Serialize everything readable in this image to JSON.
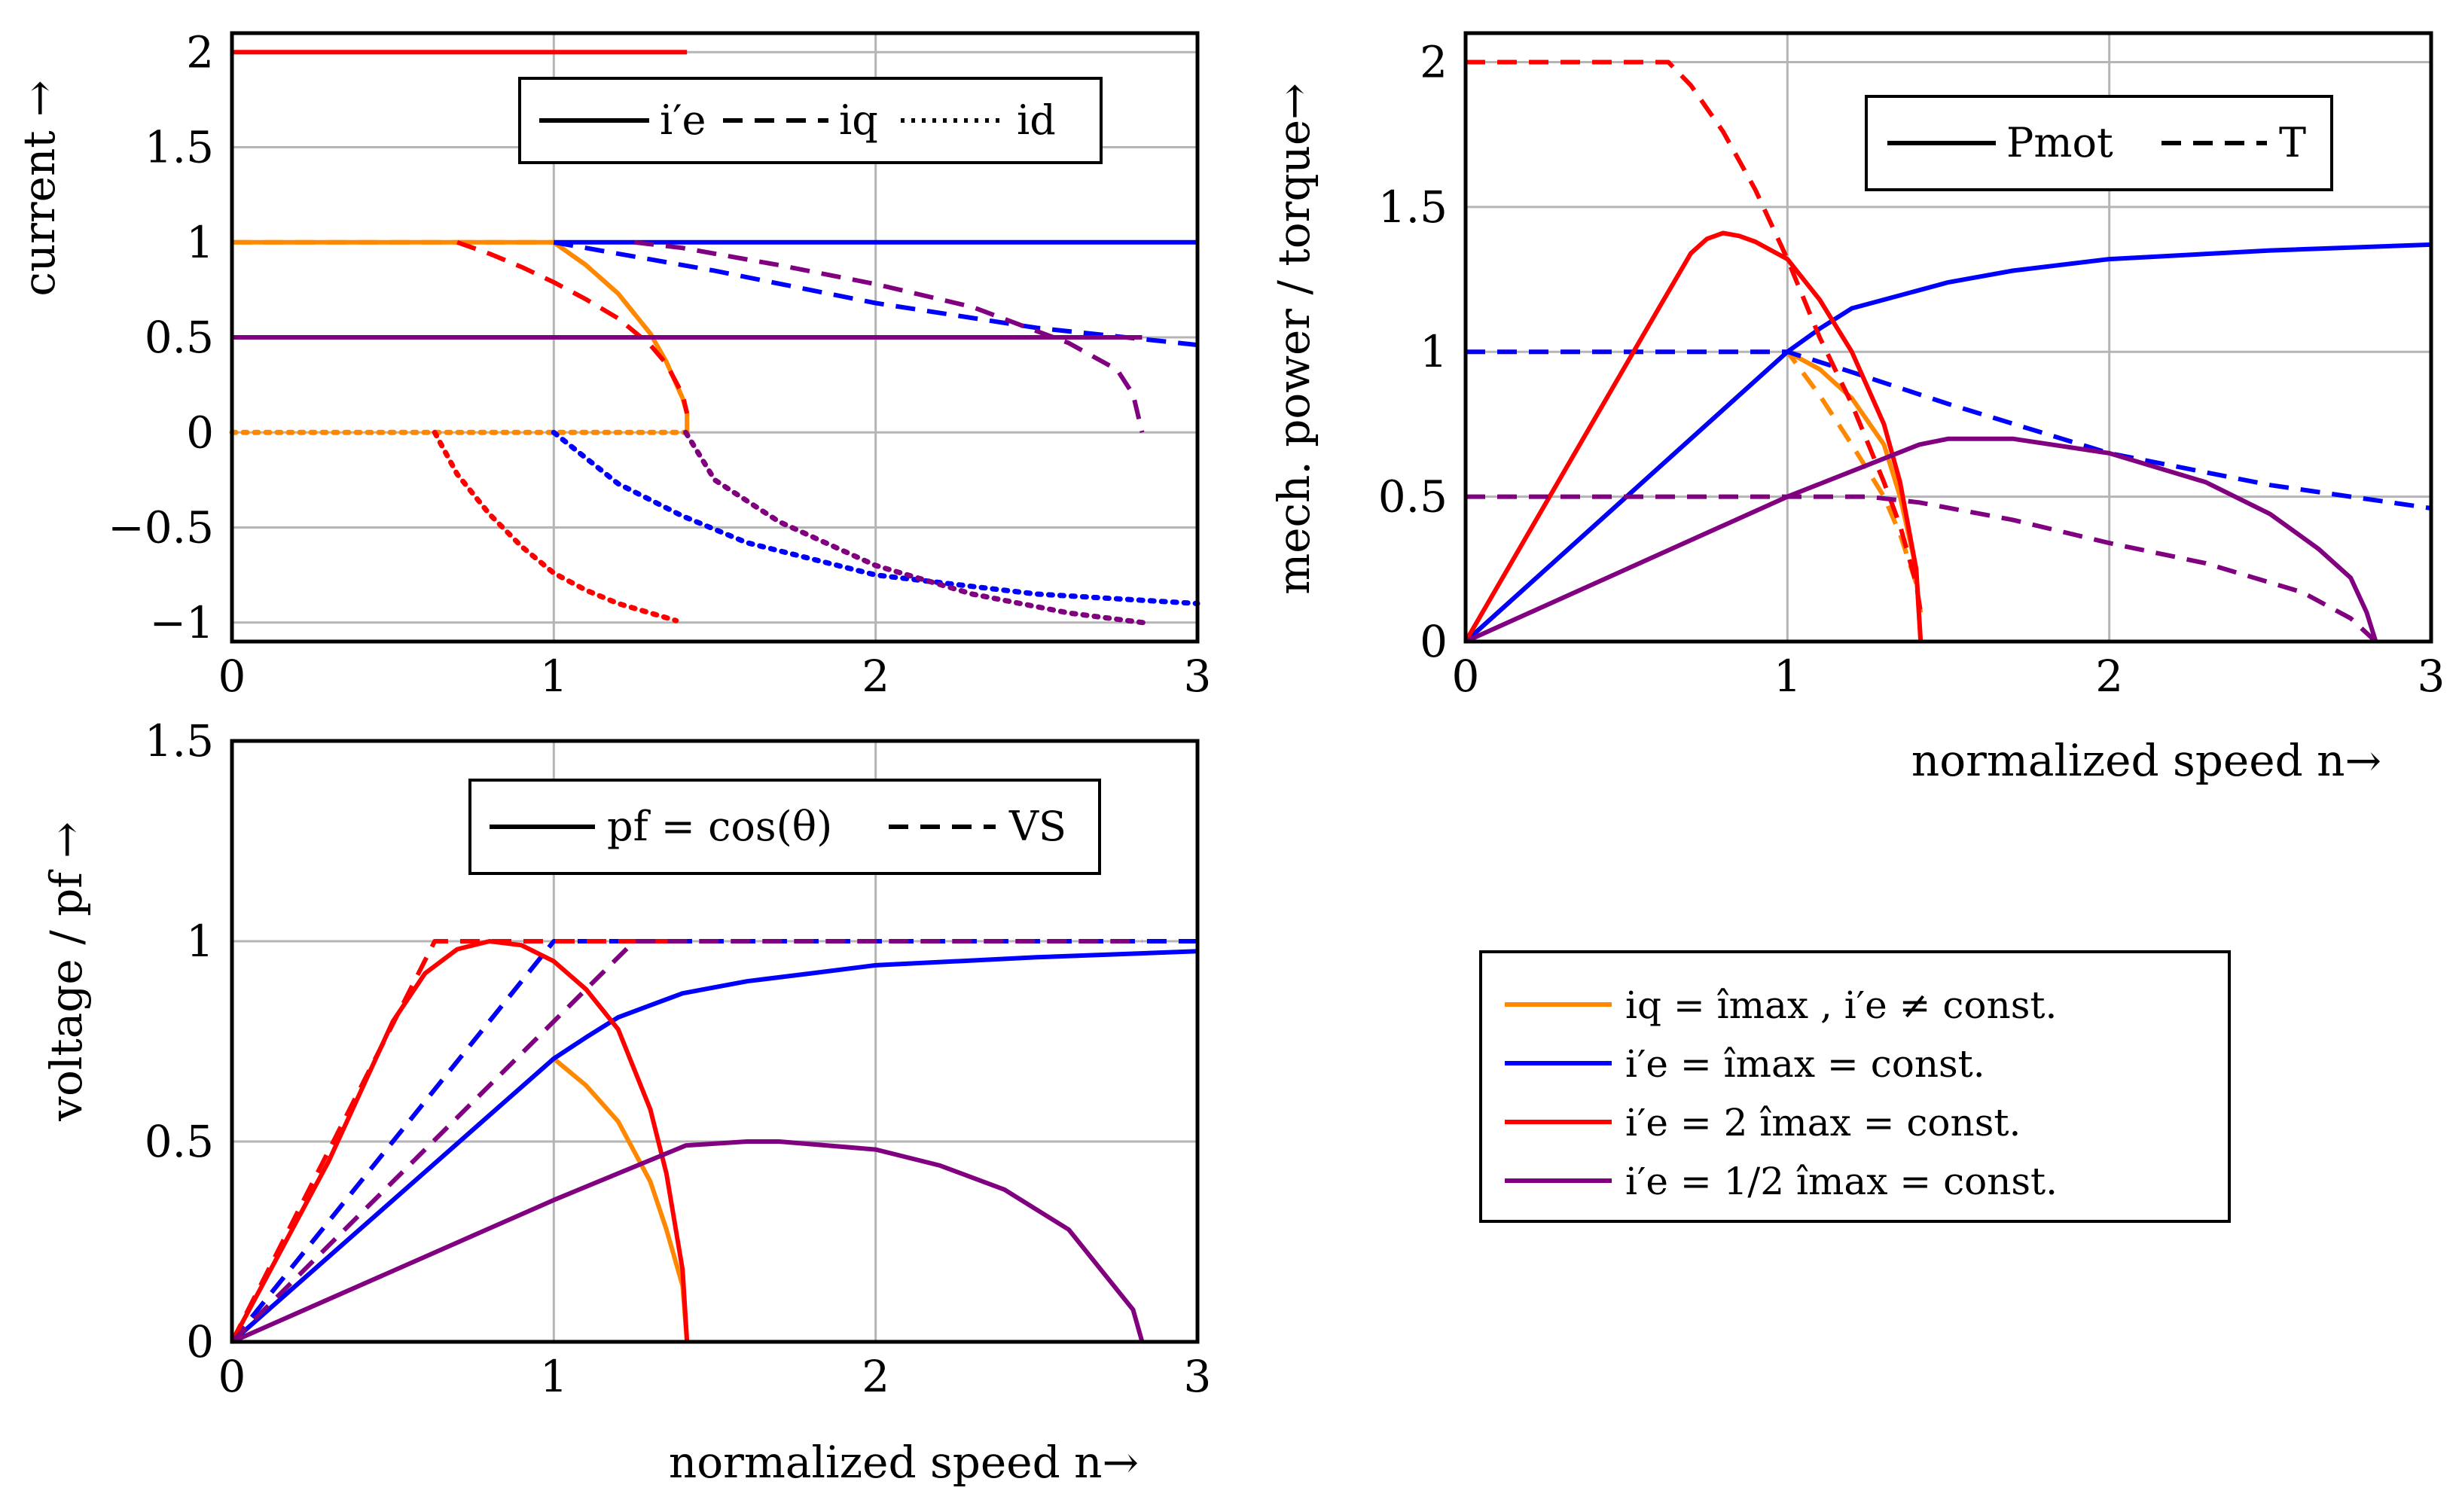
{
  "colors": {
    "orange": "#ff8800",
    "blue": "#0000ff",
    "red": "#ff0000",
    "purple": "#800080"
  },
  "chart_data": [
    {
      "type": "line",
      "id": "current",
      "ylabel": "current →",
      "xlabel": "",
      "xlim": [
        0,
        3
      ],
      "ylim": [
        -1.1,
        2.1
      ],
      "xticks": [
        "0",
        "1",
        "2",
        "3"
      ],
      "yticks": [
        "2",
        "1.5",
        "1",
        "0.5",
        "0",
        "−0.5",
        "−1"
      ],
      "ytick_values": [
        2,
        1.5,
        1,
        0.5,
        0,
        -0.5,
        -1
      ],
      "legend": {
        "position": "top-right",
        "entries": [
          {
            "style": "solid",
            "label": "i′e"
          },
          {
            "style": "dashed",
            "label": "iq"
          },
          {
            "style": "dotted",
            "label": "id"
          }
        ]
      },
      "series": [
        {
          "name": "i′e (orange)",
          "color": "orange",
          "style": "solid",
          "x": [
            0,
            1,
            1.1,
            1.2,
            1.3,
            1.35,
            1.4,
            1.414,
            1.414
          ],
          "y": [
            1,
            1,
            0.88,
            0.73,
            0.52,
            0.37,
            0.18,
            0.1,
            0
          ]
        },
        {
          "name": "iq (orange)",
          "color": "orange",
          "style": "dashed",
          "x": [
            0,
            1,
            1.1,
            1.2,
            1.3,
            1.35,
            1.4,
            1.414
          ],
          "y": [
            1,
            1,
            0.88,
            0.73,
            0.52,
            0.37,
            0.18,
            0.1
          ]
        },
        {
          "name": "id (orange)",
          "color": "orange",
          "style": "dotted",
          "x": [
            0,
            1.414
          ],
          "y": [
            0,
            0
          ]
        },
        {
          "name": "i′e (blue)",
          "color": "blue",
          "style": "solid",
          "x": [
            1,
            3
          ],
          "y": [
            1,
            1
          ]
        },
        {
          "name": "iq (blue)",
          "color": "blue",
          "style": "dashed",
          "x": [
            1,
            1.2,
            1.5,
            2,
            2.5,
            3
          ],
          "y": [
            1,
            0.94,
            0.85,
            0.68,
            0.55,
            0.46
          ]
        },
        {
          "name": "id (blue)",
          "color": "blue",
          "style": "dotted",
          "x": [
            1,
            1.2,
            1.4,
            1.6,
            2,
            2.5,
            3
          ],
          "y": [
            0,
            -0.27,
            -0.44,
            -0.58,
            -0.75,
            -0.85,
            -0.9
          ]
        },
        {
          "name": "i′e (red)",
          "color": "red",
          "style": "solid",
          "x": [
            0,
            1.414
          ],
          "y": [
            2,
            2
          ]
        },
        {
          "name": "iq (red)",
          "color": "red",
          "style": "dashed",
          "x": [
            0.7,
            0.8,
            0.9,
            1,
            1.1,
            1.2,
            1.3,
            1.35,
            1.4,
            1.414
          ],
          "y": [
            1,
            0.94,
            0.87,
            0.79,
            0.7,
            0.6,
            0.46,
            0.36,
            0.2,
            0.1
          ]
        },
        {
          "name": "id (red)",
          "color": "red",
          "style": "dotted",
          "x": [
            0.63,
            0.7,
            0.8,
            0.9,
            1,
            1.1,
            1.2,
            1.3,
            1.38
          ],
          "y": [
            0,
            -0.22,
            -0.43,
            -0.6,
            -0.74,
            -0.83,
            -0.9,
            -0.95,
            -0.99
          ]
        },
        {
          "name": "i′e (purple)",
          "color": "purple",
          "style": "solid",
          "x": [
            0,
            2.828
          ],
          "y": [
            0.5,
            0.5
          ]
        },
        {
          "name": "iq (purple)",
          "color": "purple",
          "style": "dashed",
          "x": [
            1.25,
            1.4,
            1.7,
            2,
            2.3,
            2.6,
            2.75,
            2.8,
            2.828
          ],
          "y": [
            1,
            0.97,
            0.88,
            0.78,
            0.66,
            0.47,
            0.33,
            0.2,
            0
          ]
        },
        {
          "name": "id (purple)",
          "color": "purple",
          "style": "dotted",
          "x": [
            1.41,
            1.5,
            1.7,
            2,
            2.3,
            2.6,
            2.83
          ],
          "y": [
            0,
            -0.25,
            -0.47,
            -0.7,
            -0.85,
            -0.95,
            -1
          ]
        }
      ]
    },
    {
      "type": "line",
      "id": "power_torque",
      "ylabel": "mech. power / torque→",
      "xlabel": "normalized speed n→",
      "xlim": [
        0,
        3
      ],
      "ylim": [
        0,
        2.1
      ],
      "xticks": [
        "0",
        "1",
        "2",
        "3"
      ],
      "yticks": [
        "2",
        "1.5",
        "1",
        "0.5",
        "0"
      ],
      "ytick_values": [
        2,
        1.5,
        1,
        0.5,
        0
      ],
      "legend": {
        "position": "top-right",
        "entries": [
          {
            "style": "solid",
            "label": "Pmot"
          },
          {
            "style": "dashed",
            "label": "T"
          }
        ]
      },
      "series": [
        {
          "name": "Pmot (orange)",
          "color": "orange",
          "style": "solid",
          "x": [
            0,
            1,
            1.1,
            1.2,
            1.3,
            1.35,
            1.4,
            1.414
          ],
          "y": [
            0,
            1,
            0.94,
            0.84,
            0.68,
            0.5,
            0.25,
            0
          ]
        },
        {
          "name": "T (orange)",
          "color": "orange",
          "style": "dashed",
          "x": [
            0,
            1,
            1.1,
            1.2,
            1.3,
            1.35,
            1.4,
            1.414
          ],
          "y": [
            1,
            1,
            0.85,
            0.68,
            0.5,
            0.37,
            0.2,
            0.1
          ]
        },
        {
          "name": "Pmot (blue)",
          "color": "blue",
          "style": "solid",
          "x": [
            0,
            1,
            1.1,
            1.2,
            1.3,
            1.5,
            1.7,
            2,
            2.5,
            3
          ],
          "y": [
            0,
            1,
            1.08,
            1.15,
            1.18,
            1.24,
            1.28,
            1.32,
            1.35,
            1.37
          ]
        },
        {
          "name": "T (blue)",
          "color": "blue",
          "style": "dashed",
          "x": [
            0,
            1,
            1.2,
            1.5,
            2,
            2.5,
            3
          ],
          "y": [
            1,
            1,
            0.93,
            0.82,
            0.65,
            0.54,
            0.46
          ]
        },
        {
          "name": "Pmot (red)",
          "color": "red",
          "style": "solid",
          "x": [
            0,
            0.6,
            0.7,
            0.75,
            0.8,
            0.85,
            0.9,
            1,
            1.1,
            1.2,
            1.3,
            1.35,
            1.4,
            1.414
          ],
          "y": [
            0,
            1.15,
            1.34,
            1.39,
            1.41,
            1.4,
            1.38,
            1.32,
            1.18,
            1.0,
            0.75,
            0.55,
            0.25,
            0
          ]
        },
        {
          "name": "T (red)",
          "color": "red",
          "style": "dashed",
          "x": [
            0,
            0.63,
            0.7,
            0.8,
            0.9,
            1,
            1.1,
            1.2,
            1.3,
            1.35,
            1.4,
            1.414
          ],
          "y": [
            2,
            2,
            1.92,
            1.76,
            1.56,
            1.32,
            1.05,
            0.82,
            0.55,
            0.4,
            0.2,
            0.1
          ]
        },
        {
          "name": "Pmot (purple)",
          "color": "purple",
          "style": "solid",
          "x": [
            0,
            1,
            1.41,
            1.5,
            1.7,
            2,
            2.3,
            2.5,
            2.65,
            2.75,
            2.8,
            2.828
          ],
          "y": [
            0,
            0.5,
            0.68,
            0.7,
            0.7,
            0.65,
            0.55,
            0.44,
            0.32,
            0.22,
            0.1,
            0
          ]
        },
        {
          "name": "T (purple)",
          "color": "purple",
          "style": "dashed",
          "x": [
            0,
            1.25,
            1.41,
            1.7,
            2,
            2.3,
            2.6,
            2.75,
            2.828
          ],
          "y": [
            0.5,
            0.5,
            0.48,
            0.42,
            0.34,
            0.27,
            0.17,
            0.08,
            0
          ]
        }
      ]
    },
    {
      "type": "line",
      "id": "voltage_pf",
      "ylabel": "voltage / pf →",
      "xlabel": "normalized speed n→",
      "xlim": [
        0,
        3
      ],
      "ylim": [
        0,
        1.5
      ],
      "xticks": [
        "0",
        "1",
        "2",
        "3"
      ],
      "yticks": [
        "1.5",
        "1",
        "0.5",
        "0"
      ],
      "ytick_values": [
        1.5,
        1,
        0.5,
        0
      ],
      "legend": {
        "position": "top-right",
        "entries": [
          {
            "style": "solid",
            "label": "pf = cos(θ)"
          },
          {
            "style": "dashed",
            "label": "VS"
          }
        ]
      },
      "series": [
        {
          "name": "pf (orange)",
          "color": "orange",
          "style": "solid",
          "x": [
            0,
            1,
            1.1,
            1.2,
            1.3,
            1.35,
            1.4,
            1.414
          ],
          "y": [
            0,
            0.707,
            0.64,
            0.55,
            0.4,
            0.28,
            0.14,
            0
          ]
        },
        {
          "name": "VS (orange)",
          "color": "orange",
          "style": "dashed",
          "x": [
            0,
            1,
            1.414
          ],
          "y": [
            0,
            1,
            1
          ]
        },
        {
          "name": "pf (blue)",
          "color": "blue",
          "style": "solid",
          "x": [
            0,
            1,
            1.1,
            1.2,
            1.3,
            1.4,
            1.6,
            1.8,
            2,
            2.5,
            3
          ],
          "y": [
            0,
            0.707,
            0.76,
            0.81,
            0.84,
            0.87,
            0.9,
            0.92,
            0.94,
            0.96,
            0.975
          ]
        },
        {
          "name": "VS (blue)",
          "color": "blue",
          "style": "dashed",
          "x": [
            0,
            1,
            3
          ],
          "y": [
            0,
            1,
            1
          ]
        },
        {
          "name": "pf (red)",
          "color": "red",
          "style": "solid",
          "x": [
            0,
            0.3,
            0.5,
            0.6,
            0.7,
            0.8,
            0.9,
            1,
            1.1,
            1.2,
            1.3,
            1.35,
            1.4,
            1.414
          ],
          "y": [
            0,
            0.45,
            0.8,
            0.92,
            0.98,
            1,
            0.99,
            0.95,
            0.88,
            0.78,
            0.58,
            0.42,
            0.18,
            0
          ]
        },
        {
          "name": "VS (red)",
          "color": "red",
          "style": "dashed",
          "x": [
            0,
            0.63,
            1.414
          ],
          "y": [
            0,
            1,
            1
          ]
        },
        {
          "name": "pf (purple)",
          "color": "purple",
          "style": "solid",
          "x": [
            0,
            1,
            1.41,
            1.6,
            1.7,
            2,
            2.2,
            2.4,
            2.6,
            2.7,
            2.8,
            2.828
          ],
          "y": [
            0,
            0.354,
            0.49,
            0.5,
            0.5,
            0.48,
            0.44,
            0.38,
            0.28,
            0.18,
            0.08,
            0
          ]
        },
        {
          "name": "VS (purple)",
          "color": "purple",
          "style": "dashed",
          "x": [
            0,
            1.25,
            2.828
          ],
          "y": [
            0,
            1,
            1
          ]
        }
      ]
    }
  ],
  "legend_main": [
    {
      "color": "orange",
      "text": "iq = îmax , i′e ≠ const."
    },
    {
      "color": "blue",
      "text": "i′e = îmax = const."
    },
    {
      "color": "red",
      "text": "i′e = 2 îmax = const."
    },
    {
      "color": "purple",
      "text": "i′e = 1/2 îmax = const."
    }
  ]
}
